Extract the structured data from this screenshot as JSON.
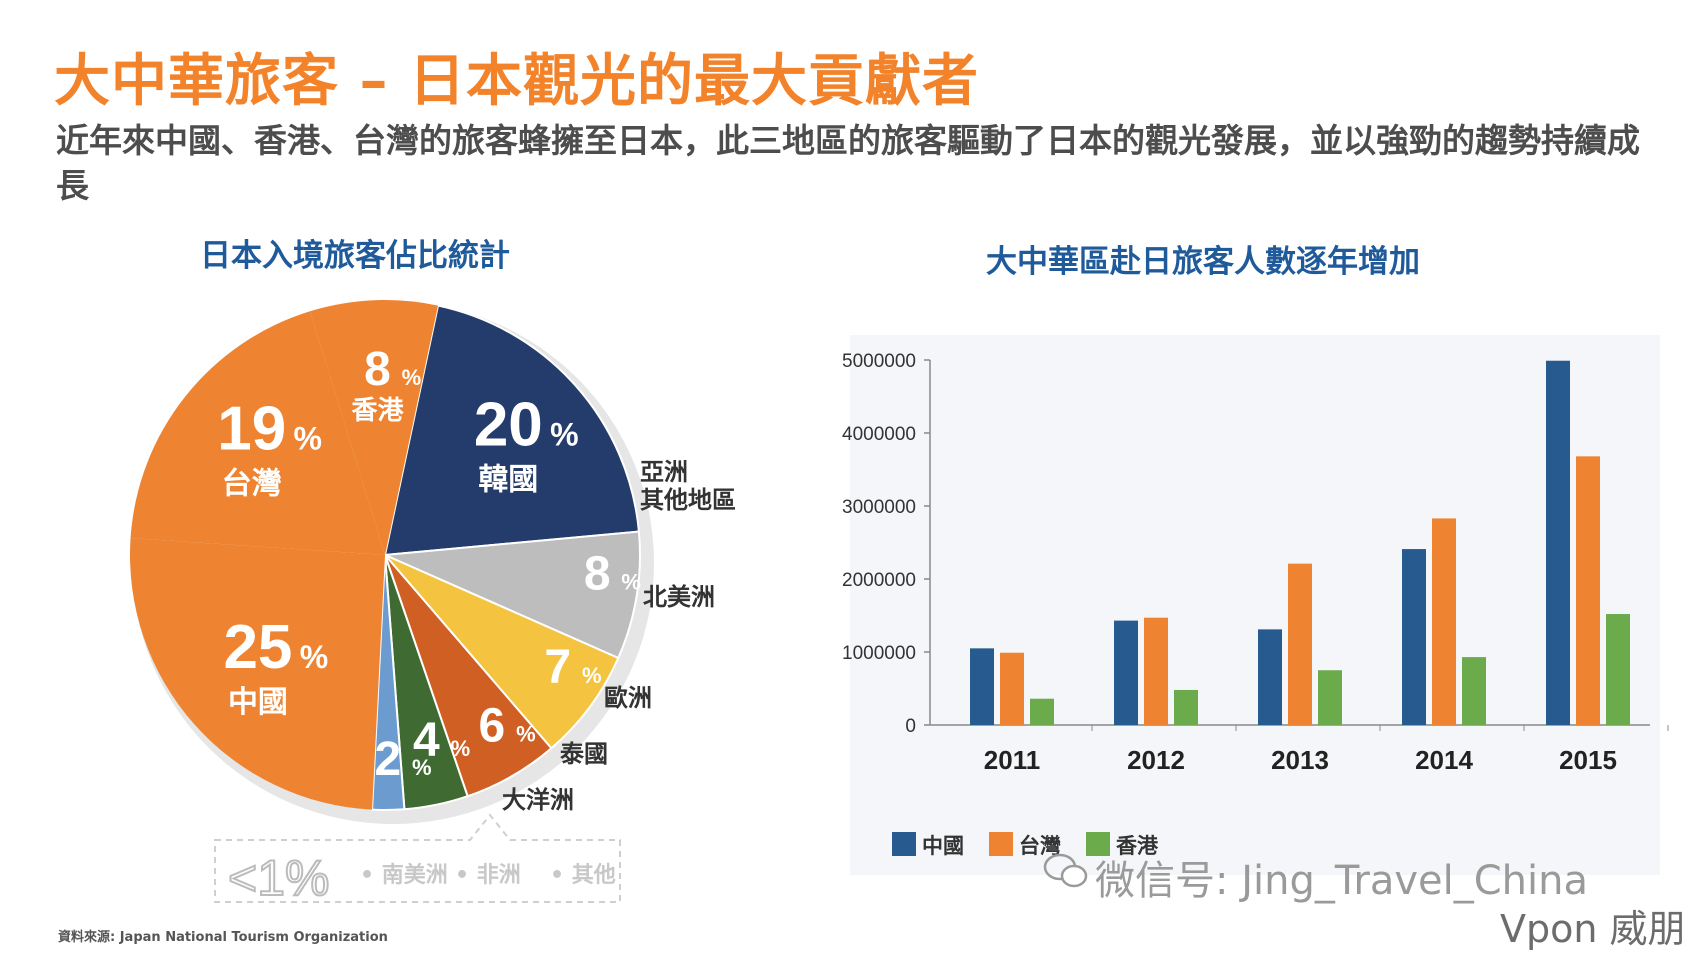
{
  "header": {
    "title": "大中華旅客 – 日本觀光的最大貢獻者",
    "subtitle": "近年來中國、香港、台灣的旅客蜂擁至日本，此三地區的旅客驅動了日本的觀光發展，並以強勁的趨勢持續成長"
  },
  "pie_title": "日本入境旅客佔比統計",
  "bar_title": "大中華區赴日旅客人數逐年增加",
  "source": "資料來源: Japan National Tourism Organization",
  "watermark": "微信号: Jing_Travel_China",
  "brand": "Vpon 威朋",
  "colors": {
    "orange": "#ee8431",
    "navy": "#233c6b",
    "gray": "#bdbdbd",
    "yellow": "#f4c33f",
    "rust": "#d05f24",
    "green": "#3f6b33",
    "blue": "#6c9bd0",
    "bar_china": "#275b8f",
    "bar_taiwan": "#ee8431",
    "bar_hk": "#6bab4b"
  },
  "chart_data": [
    {
      "type": "pie",
      "title": "日本入境旅客佔比統計",
      "slices": [
        {
          "label": "韓國",
          "value": 20,
          "value_text": "20"
        },
        {
          "label": "亞洲 其他地區",
          "value": 8,
          "value_text": "8"
        },
        {
          "label": "北美洲",
          "value": 7,
          "value_text": "7"
        },
        {
          "label": "歐洲",
          "value": 6,
          "value_text": "6"
        },
        {
          "label": "泰國",
          "value": 4,
          "value_text": "4"
        },
        {
          "label": "大洋洲",
          "value": 2,
          "value_text": "2"
        },
        {
          "label": "中國",
          "value": 25,
          "value_text": "25"
        },
        {
          "label": "台灣",
          "value": 19,
          "value_text": "19"
        },
        {
          "label": "香港",
          "value": 8,
          "value_text": "8"
        }
      ],
      "percent_sign": "%",
      "note": {
        "value": "<1%",
        "items": [
          "南美洲",
          "非洲",
          "其他"
        ]
      }
    },
    {
      "type": "bar",
      "title": "大中華區赴日旅客人數逐年增加",
      "categories": [
        "2011",
        "2012",
        "2013",
        "2014",
        "2015"
      ],
      "series": [
        {
          "name": "中國",
          "values": [
            1050000,
            1430000,
            1310000,
            2410000,
            4990000
          ]
        },
        {
          "name": "台灣",
          "values": [
            990000,
            1470000,
            2210000,
            2830000,
            3680000
          ]
        },
        {
          "name": "香港",
          "values": [
            360000,
            480000,
            750000,
            930000,
            1520000
          ]
        }
      ],
      "yticks": [
        "0",
        "1000000",
        "2000000",
        "3000000",
        "4000000",
        "5000000"
      ],
      "ylim": [
        0,
        5000000
      ]
    }
  ]
}
